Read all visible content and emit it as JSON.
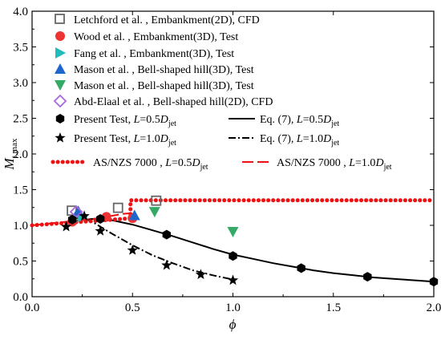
{
  "chart_data": {
    "type": "scatter",
    "xlabel": "ϕ",
    "ylabel": {
      "main": "M",
      "sub": "t,max"
    },
    "xlim": [
      0,
      2.0
    ],
    "ylim": [
      0,
      4.0
    ],
    "xticks": [
      0.0,
      0.5,
      1.0,
      1.5,
      2.0
    ],
    "yticks": [
      0.0,
      0.5,
      1.0,
      1.5,
      2.0,
      2.5,
      3.0,
      3.5,
      4.0
    ],
    "xtick_labels": [
      "0.0",
      "0.5",
      "1.0",
      "1.5",
      "2.0"
    ],
    "ytick_labels": [
      "0.0",
      "0.5",
      "1.0",
      "1.5",
      "2.0",
      "2.5",
      "3.0",
      "3.5",
      "4.0"
    ],
    "grid": false,
    "legend_position": "top-left, inside plot",
    "series": [
      {
        "name": "Letchford et al. , Embankment(2D), CFD",
        "kind": "marker",
        "marker": "open-square",
        "color": "#666666",
        "points": [
          [
            0.2,
            1.2
          ],
          [
            0.43,
            1.24
          ],
          [
            0.62,
            1.34
          ]
        ]
      },
      {
        "name": "Wood et al. , Embankment(3D), Test",
        "kind": "marker",
        "marker": "circle",
        "color": "#ee3333",
        "points": [
          [
            0.2,
            1.05
          ],
          [
            0.37,
            1.12
          ],
          [
            0.5,
            1.1
          ]
        ]
      },
      {
        "name": "Fang et al. , Embankment(3D), Test",
        "kind": "marker",
        "marker": "triangle-right",
        "color": "#22bbbb",
        "points": [
          [
            0.25,
            1.12
          ]
        ]
      },
      {
        "name": "Mason et al. , Bell-shaped hill(3D), Test",
        "kind": "marker",
        "marker": "triangle-up",
        "color": "#1f66cc",
        "points": [
          [
            0.23,
            1.2
          ],
          [
            0.51,
            1.14
          ]
        ]
      },
      {
        "name": "Mason et al. , Bell-shaped hill(3D), Test",
        "kind": "marker",
        "marker": "triangle-down",
        "color": "#33aa66",
        "points": [
          [
            0.61,
            1.19
          ],
          [
            1.0,
            0.91
          ]
        ]
      },
      {
        "name": "Abd-Elaal et al. , Bell-shaped hill(2D), CFD",
        "kind": "marker",
        "marker": "open-diamond",
        "color": "#aa66dd",
        "points": [
          [
            0.22,
            1.19
          ]
        ]
      },
      {
        "name_parts": [
          "Present Test, ",
          "L",
          "=0.5",
          "D",
          "jet"
        ],
        "kind": "marker",
        "marker": "hexagon",
        "color": "#000000",
        "points": [
          [
            0.2,
            1.08
          ],
          [
            0.34,
            1.09
          ],
          [
            0.67,
            0.87
          ],
          [
            1.0,
            0.57
          ],
          [
            1.34,
            0.4
          ],
          [
            1.67,
            0.28
          ],
          [
            2.0,
            0.21
          ]
        ]
      },
      {
        "name_parts": [
          "Present Test, ",
          "L",
          "=1.0",
          "D",
          "jet"
        ],
        "kind": "marker",
        "marker": "star",
        "color": "#000000",
        "points": [
          [
            0.17,
            0.98
          ],
          [
            0.26,
            1.13
          ],
          [
            0.34,
            0.92
          ],
          [
            0.5,
            0.65
          ],
          [
            0.67,
            0.44
          ],
          [
            0.84,
            0.31
          ],
          [
            1.0,
            0.23
          ]
        ]
      },
      {
        "name_parts": [
          "Eq. (7), ",
          "L",
          "=0.5",
          "D",
          "jet"
        ],
        "kind": "line",
        "dash": "solid",
        "color": "#000000",
        "points": [
          [
            0.2,
            1.06
          ],
          [
            0.3,
            1.09
          ],
          [
            0.4,
            1.07
          ],
          [
            0.5,
            1.01
          ],
          [
            0.6,
            0.93
          ],
          [
            0.7,
            0.85
          ],
          [
            0.8,
            0.76
          ],
          [
            0.9,
            0.67
          ],
          [
            1.0,
            0.59
          ],
          [
            1.1,
            0.53
          ],
          [
            1.2,
            0.47
          ],
          [
            1.3,
            0.42
          ],
          [
            1.4,
            0.37
          ],
          [
            1.5,
            0.33
          ],
          [
            1.6,
            0.3
          ],
          [
            1.7,
            0.27
          ],
          [
            1.8,
            0.25
          ],
          [
            1.9,
            0.23
          ],
          [
            2.0,
            0.21
          ]
        ]
      },
      {
        "name_parts": [
          "Eq. (7), ",
          "L",
          "=1.0",
          "D",
          "jet"
        ],
        "kind": "line",
        "dash": "dash-dot",
        "color": "#000000",
        "points": [
          [
            0.2,
            1.1
          ],
          [
            0.26,
            1.1
          ],
          [
            0.3,
            1.05
          ],
          [
            0.4,
            0.88
          ],
          [
            0.5,
            0.72
          ],
          [
            0.6,
            0.58
          ],
          [
            0.7,
            0.47
          ],
          [
            0.8,
            0.37
          ],
          [
            0.9,
            0.3
          ],
          [
            1.0,
            0.24
          ]
        ]
      },
      {
        "name_parts": [
          "AS/NZS 7000 , ",
          "L",
          "=0.5",
          "D",
          "jet"
        ],
        "kind": "line",
        "dash": "dotted-dots",
        "color": "#ee1111",
        "points": [
          [
            0.0,
            1.0
          ],
          [
            0.1,
            1.02
          ],
          [
            0.2,
            1.04
          ],
          [
            0.3,
            1.06
          ],
          [
            0.35,
            1.07
          ],
          [
            0.45,
            1.09
          ],
          [
            0.49,
            1.1
          ],
          [
            0.49,
            1.35
          ],
          [
            2.0,
            1.35
          ]
        ]
      },
      {
        "name_parts": [
          "AS/NZS 7000 , ",
          "L",
          "=1.0",
          "D",
          "jet"
        ],
        "kind": "line",
        "dash": "long-dash",
        "color": "#ee1111",
        "points": [
          [
            0.0,
            1.0
          ],
          [
            0.1,
            1.03
          ],
          [
            0.2,
            1.06
          ],
          [
            0.3,
            1.09
          ],
          [
            0.35,
            1.11
          ],
          [
            0.45,
            1.16
          ],
          [
            0.49,
            1.17
          ]
        ]
      }
    ]
  }
}
